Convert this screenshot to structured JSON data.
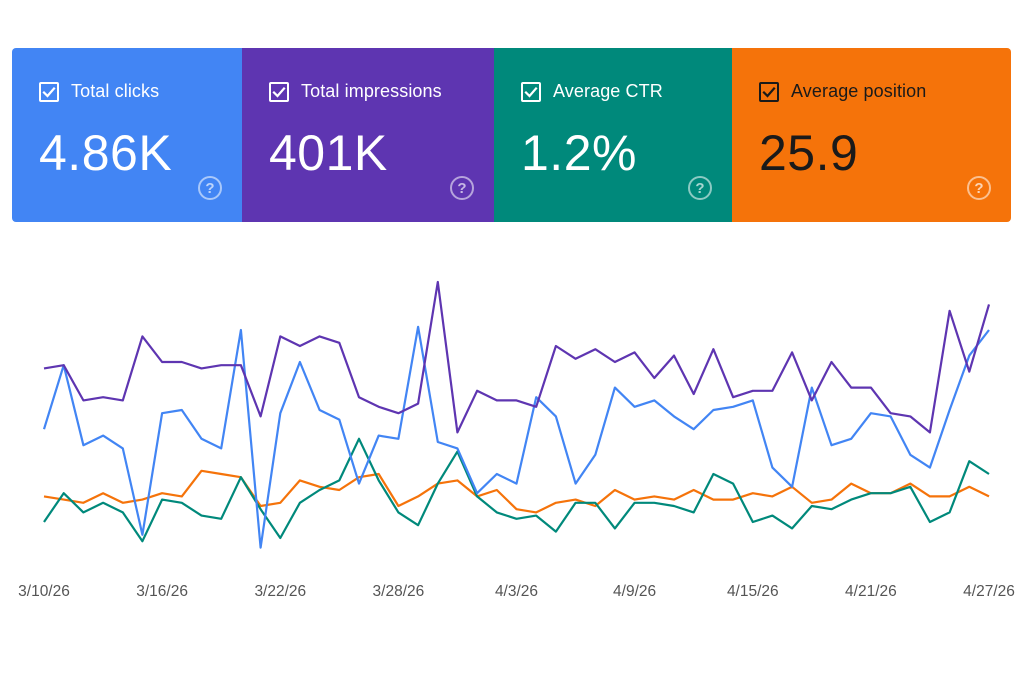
{
  "cards": [
    {
      "label": "Total clicks",
      "value": "4.86K",
      "color": "#4285f4",
      "checked": true,
      "help": "?"
    },
    {
      "label": "Total impressions",
      "value": "401K",
      "color": "#5e35b1",
      "checked": true,
      "help": "?"
    },
    {
      "label": "Average CTR",
      "value": "1.2%",
      "color": "#00897b",
      "checked": true,
      "help": "?"
    },
    {
      "label": "Average position",
      "value": "25.9",
      "color": "#f5730a",
      "checked": true,
      "help": "?"
    }
  ],
  "chart_data": {
    "type": "line",
    "x": [
      "3/10/26",
      "3/11/26",
      "3/12/26",
      "3/13/26",
      "3/14/26",
      "3/15/26",
      "3/16/26",
      "3/17/26",
      "3/18/26",
      "3/19/26",
      "3/20/26",
      "3/21/26",
      "3/22/26",
      "3/23/26",
      "3/24/26",
      "3/25/26",
      "3/26/26",
      "3/27/26",
      "3/28/26",
      "3/29/26",
      "3/30/26",
      "3/31/26",
      "4/1/26",
      "4/2/26",
      "4/3/26",
      "4/4/26",
      "4/5/26",
      "4/6/26",
      "4/7/26",
      "4/8/26",
      "4/9/26",
      "4/10/26",
      "4/11/26",
      "4/12/26",
      "4/13/26",
      "4/14/26",
      "4/15/26",
      "4/16/26",
      "4/17/26",
      "4/18/26",
      "4/19/26",
      "4/20/26",
      "4/21/26",
      "4/22/26",
      "4/23/26",
      "4/24/26",
      "4/25/26",
      "4/26/26",
      "4/27/26"
    ],
    "tick_labels": [
      "3/10/26",
      "3/16/26",
      "3/22/26",
      "3/28/26",
      "4/3/26",
      "4/9/26",
      "4/15/26",
      "4/21/26",
      "4/27/26"
    ],
    "series": [
      {
        "name": "Total clicks",
        "color": "#4285f4",
        "values": [
          0.56,
          0.36,
          0.61,
          0.58,
          0.62,
          0.89,
          0.51,
          0.5,
          0.59,
          0.62,
          0.25,
          0.93,
          0.51,
          0.35,
          0.5,
          0.53,
          0.73,
          0.58,
          0.59,
          0.24,
          0.6,
          0.62,
          0.76,
          0.7,
          0.73,
          0.46,
          0.52,
          0.73,
          0.64,
          0.43,
          0.49,
          0.47,
          0.52,
          0.56,
          0.5,
          0.49,
          0.47,
          0.68,
          0.74,
          0.43,
          0.61,
          0.59,
          0.51,
          0.52,
          0.64,
          0.68,
          0.5,
          0.33,
          0.25
        ]
      },
      {
        "name": "Total impressions",
        "color": "#5e35b1",
        "values": [
          0.37,
          0.36,
          0.47,
          0.46,
          0.47,
          0.27,
          0.35,
          0.35,
          0.37,
          0.36,
          0.36,
          0.52,
          0.27,
          0.3,
          0.27,
          0.29,
          0.46,
          0.49,
          0.51,
          0.48,
          0.1,
          0.57,
          0.44,
          0.47,
          0.47,
          0.49,
          0.3,
          0.34,
          0.31,
          0.35,
          0.32,
          0.4,
          0.33,
          0.45,
          0.31,
          0.46,
          0.44,
          0.44,
          0.32,
          0.47,
          0.35,
          0.43,
          0.43,
          0.51,
          0.52,
          0.57,
          0.19,
          0.38,
          0.17
        ]
      },
      {
        "name": "Average CTR",
        "color": "#00897b",
        "values": [
          0.85,
          0.76,
          0.82,
          0.79,
          0.82,
          0.91,
          0.78,
          0.79,
          0.83,
          0.84,
          0.71,
          0.81,
          0.9,
          0.79,
          0.75,
          0.72,
          0.59,
          0.72,
          0.82,
          0.86,
          0.73,
          0.63,
          0.77,
          0.82,
          0.84,
          0.83,
          0.88,
          0.79,
          0.79,
          0.87,
          0.79,
          0.79,
          0.8,
          0.82,
          0.7,
          0.73,
          0.85,
          0.83,
          0.87,
          0.8,
          0.81,
          0.78,
          0.76,
          0.76,
          0.74,
          0.85,
          0.82,
          0.66,
          0.7
        ]
      },
      {
        "name": "Average position",
        "color": "#f5730a",
        "values": [
          0.77,
          0.78,
          0.79,
          0.76,
          0.79,
          0.78,
          0.76,
          0.77,
          0.69,
          0.7,
          0.71,
          0.8,
          0.79,
          0.72,
          0.74,
          0.75,
          0.71,
          0.7,
          0.8,
          0.77,
          0.73,
          0.72,
          0.77,
          0.75,
          0.81,
          0.82,
          0.79,
          0.78,
          0.8,
          0.75,
          0.78,
          0.77,
          0.78,
          0.75,
          0.78,
          0.78,
          0.76,
          0.77,
          0.74,
          0.79,
          0.78,
          0.73,
          0.76,
          0.76,
          0.73,
          0.77,
          0.77,
          0.74,
          0.77
        ]
      }
    ]
  }
}
